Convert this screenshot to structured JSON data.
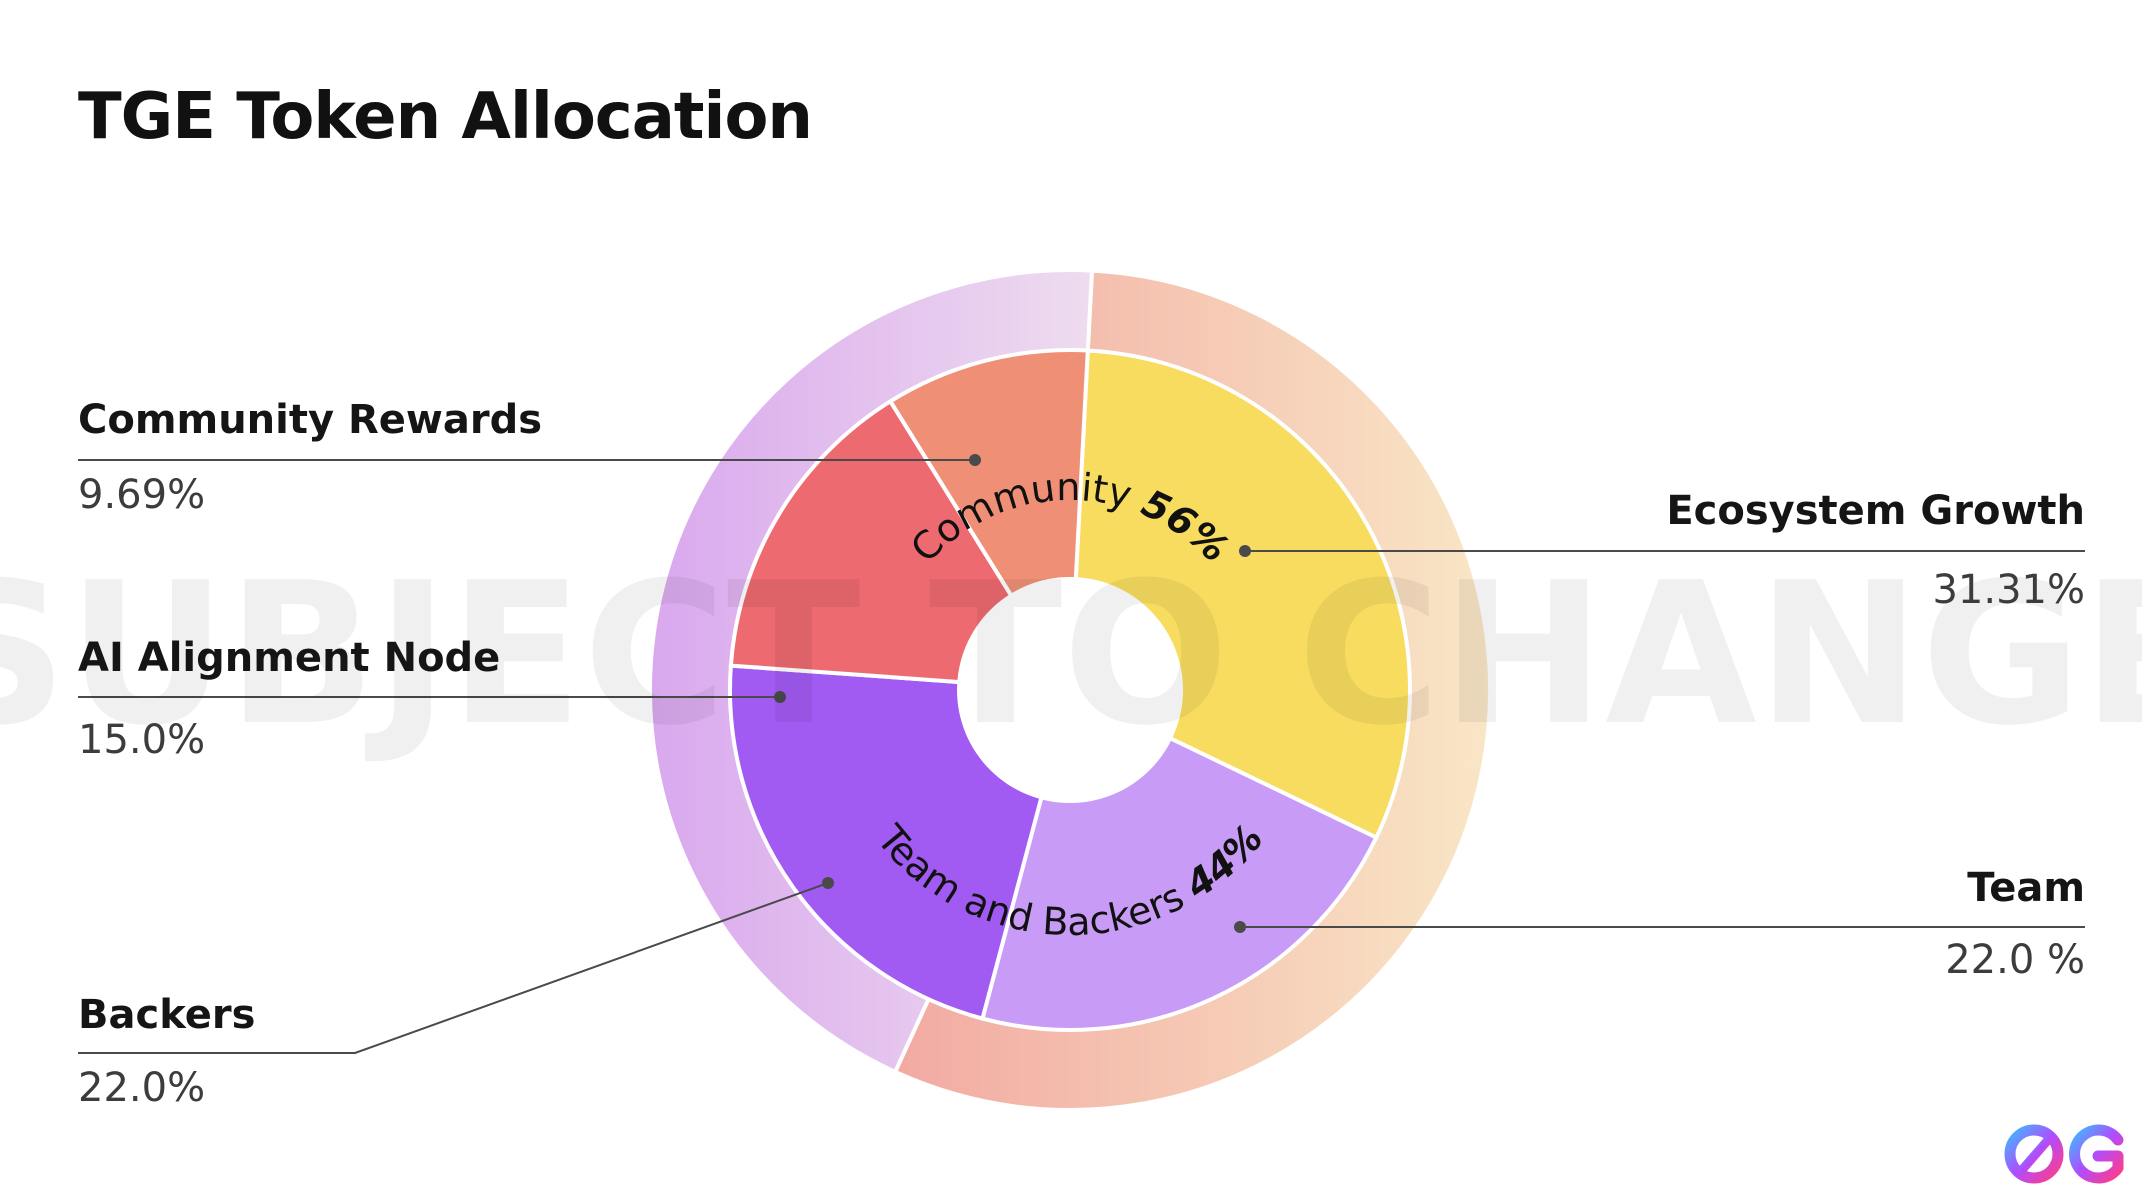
{
  "title": "TGE Token Allocation",
  "watermark": "SUBJECT TO CHANGE",
  "chart_data": {
    "type": "pie",
    "subtype": "nested-donut",
    "title": "TGE Token Allocation",
    "inner_ring": [
      {
        "name": "Ecosystem Growth",
        "value": 31.31,
        "label": "31.31%",
        "color": "#f7dc5f"
      },
      {
        "name": "Team",
        "value": 22.0,
        "label": "22.0 %",
        "color": "#c89bf7"
      },
      {
        "name": "Backers",
        "value": 22.0,
        "label": "22.0%",
        "color": "#a25bf2"
      },
      {
        "name": "AI Alignment Node",
        "value": 15.0,
        "label": "15.0%",
        "color": "#ec6a70"
      },
      {
        "name": "Community Rewards",
        "value": 9.69,
        "label": "9.69%",
        "color": "#ef9076"
      }
    ],
    "outer_ring": [
      {
        "name": "Community",
        "value": 56,
        "label": "56%",
        "color_start": "#f2aaa2",
        "color_end": "#f9e6c6"
      },
      {
        "name": "Team and Backers",
        "value": 44,
        "label": "44%",
        "color_start": "#d9a8ee",
        "color_end": "#eedcef"
      }
    ]
  }
}
